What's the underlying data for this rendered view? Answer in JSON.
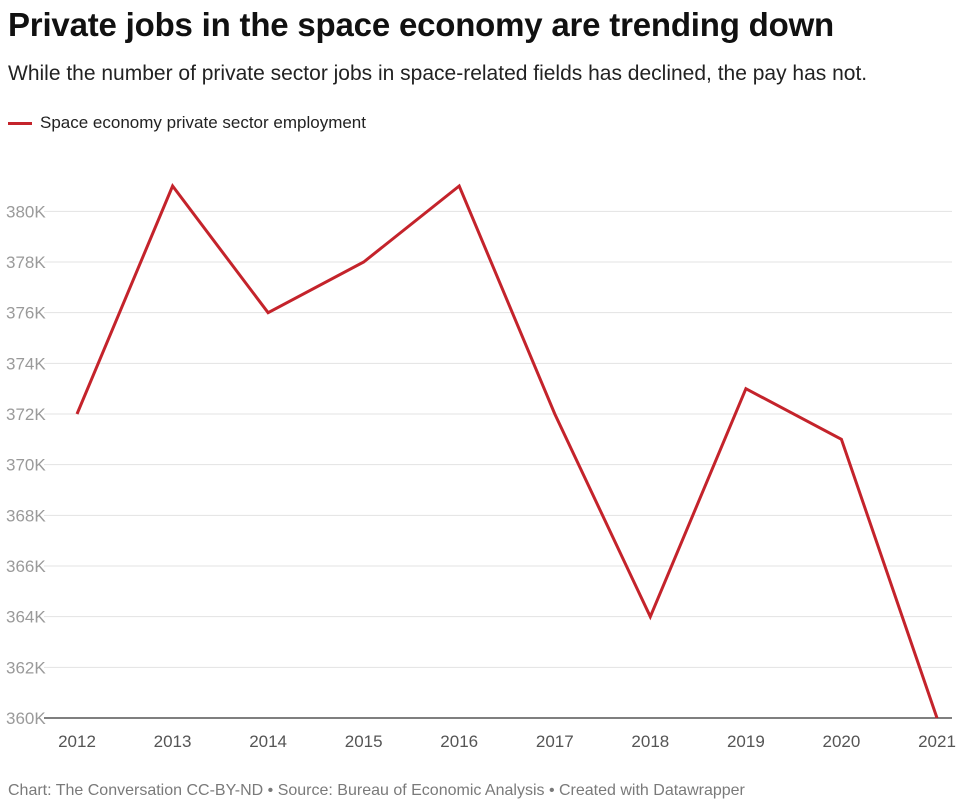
{
  "header": {
    "title": "Private jobs in the space economy are trending down",
    "subtitle": "While the number of private sector jobs in space-related fields has declined, the pay has not."
  },
  "footer": {
    "credit": "Chart: The Conversation CC-BY-ND • Source: Bureau of Economic Analysis • Created with Datawrapper"
  },
  "colors": {
    "series": "#c4232b",
    "grid": "#e3e3e3",
    "baseline": "#333333"
  },
  "chart_data": {
    "type": "line",
    "title": "Private jobs in the space economy are trending down",
    "subtitle": "While the number of private sector jobs in space-related fields has declined, the pay has not.",
    "xlabel": "",
    "ylabel": "",
    "x": [
      "2012",
      "2013",
      "2014",
      "2015",
      "2016",
      "2017",
      "2018",
      "2019",
      "2020",
      "2021"
    ],
    "series": [
      {
        "name": "Space economy private sector employment",
        "values": [
          372000,
          381000,
          376000,
          378000,
          381000,
          372000,
          364000,
          373000,
          371000,
          360000
        ]
      }
    ],
    "ylim": [
      360000,
      381000
    ],
    "yticks": [
      360000,
      362000,
      364000,
      366000,
      368000,
      370000,
      372000,
      374000,
      376000,
      378000,
      380000
    ],
    "ytick_labels": [
      "360K",
      "362K",
      "364K",
      "366K",
      "368K",
      "370K",
      "372K",
      "374K",
      "376K",
      "378K",
      "380K"
    ],
    "grid": true,
    "legend": "top-left"
  }
}
